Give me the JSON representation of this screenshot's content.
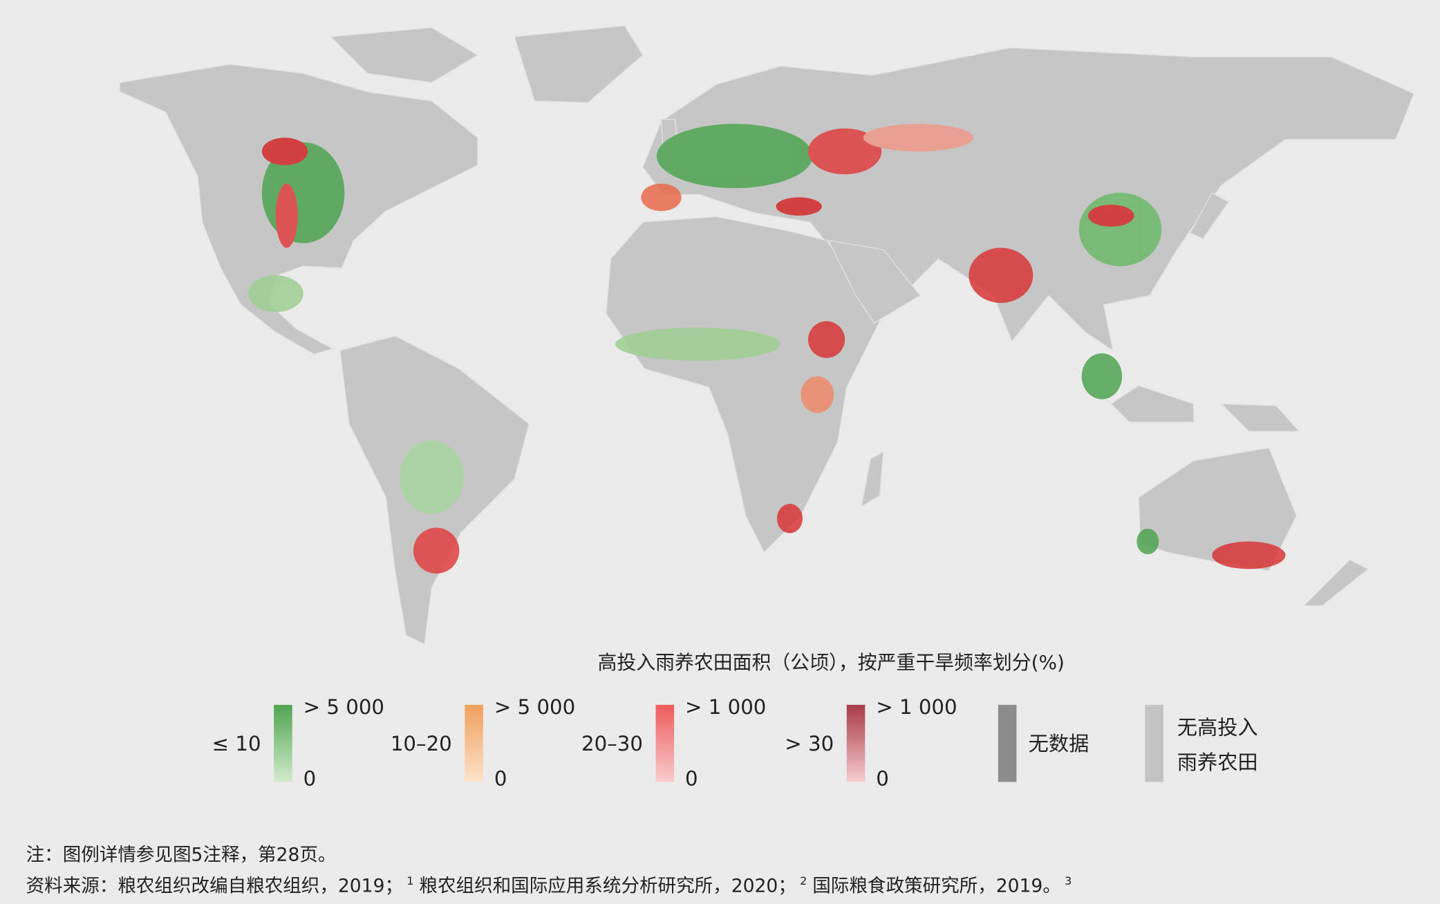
{
  "legend": {
    "title": "高投入雨养农田面积（公顷），按严重干旱频率划分(%)",
    "items": [
      {
        "label": "≤ 10",
        "max": "> 5 000",
        "min": "0"
      },
      {
        "label": "10–20",
        "max": "> 5 000",
        "min": "0"
      },
      {
        "label": "20–30",
        "max": "> 1 000",
        "min": "0"
      },
      {
        "label": "> 30",
        "max": "> 1 000",
        "min": "0"
      }
    ],
    "no_data": "无数据",
    "no_cropland": [
      "无高投入",
      "雨养农田"
    ]
  },
  "notes": {
    "note": "注：图例详情参见图5注释，第28页。",
    "source": [
      {
        "text": "资料来源：粮农组织改编自粮农组织，2019；",
        "ref": "1"
      },
      {
        "text": "粮农组织和国际应用系统分析研究所，2020；",
        "ref": "2"
      },
      {
        "text": "国际粮食政策研究所，2019。",
        "ref": "3"
      }
    ]
  }
}
